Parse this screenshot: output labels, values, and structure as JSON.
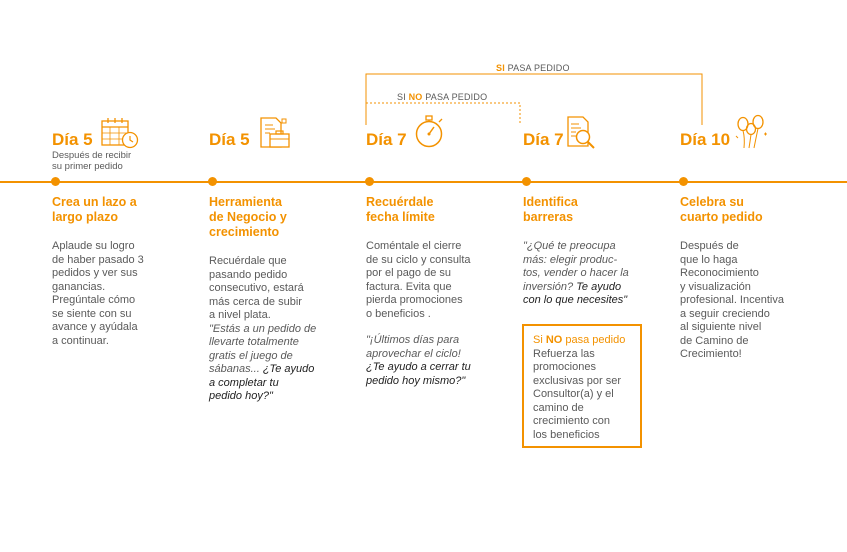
{
  "brackets": {
    "si_pasa": {
      "keyword": "SI",
      "rest": " PASA PEDIDO"
    },
    "no_pasa": {
      "prefix": "SI ",
      "keyword": "NO",
      "rest": " PASA PEDIDO"
    }
  },
  "steps": [
    {
      "day": "Día 5",
      "icon": "calendar-clock-icon",
      "subtitle": [
        "Después de recibir",
        "su primer pedido"
      ],
      "title": [
        "Crea un lazo a",
        "largo plazo"
      ],
      "body": [
        "Aplaude su logro",
        "de haber pasado 3",
        "pedidos y ver sus",
        "ganancias.",
        "Pregúntale cómo",
        "se siente con su",
        "avance y ayúdala",
        "a continuar."
      ]
    },
    {
      "day": "Día 5",
      "icon": "business-tools-icon",
      "title": [
        "Herramienta",
        "de Negocio y",
        "crecimiento"
      ],
      "body": [
        "Recuérdale que",
        "pasando pedido",
        "consecutivo, estará",
        "más cerca de subir",
        "a nivel plata."
      ],
      "quote": [
        "\"Estás a un pedido de",
        "llevarte totalmente",
        "gratis el juego de"
      ],
      "quote_last": "sábanas... ",
      "quote_bold": [
        "¿Te ayudo",
        "a completar tu",
        "pedido hoy?\""
      ]
    },
    {
      "day": "Día 7",
      "icon": "stopwatch-icon",
      "title": [
        "Recuérdale",
        "fecha límite"
      ],
      "body": [
        "Coméntale el cierre",
        "de su ciclo y consulta",
        "por el pago de su",
        "factura. Evita que",
        "pierda promociones",
        "o beneficios ."
      ],
      "quote": [
        "\"¡Últimos días para",
        "aprovechar el ciclo!"
      ],
      "quote_bold": [
        "¿Te ayudo a cerrar tu",
        "pedido hoy mismo?\""
      ]
    },
    {
      "day": "Día 7",
      "icon": "document-search-icon",
      "title": [
        "Identifica",
        "barreras"
      ],
      "quote": [
        "\"¿Qué te preocupa",
        "más: elegir produc-",
        "tos, vender o hacer la"
      ],
      "quote_mid": "inversión? ",
      "quote_bold_inline": "Te ayudo",
      "quote_bold": [
        "con lo que necesites\""
      ],
      "box": {
        "head_prefix": "Si ",
        "head_keyword": "NO",
        "head_rest": " pasa pedido",
        "lines": [
          "Refuerza las",
          "promociones",
          "exclusivas por ser",
          "Consultor(a) y el",
          "camino de",
          "crecimiento con",
          "los beneficios"
        ]
      }
    },
    {
      "day": "Día 10",
      "icon": "balloons-icon",
      "title": [
        "Celebra su",
        "cuarto pedido"
      ],
      "body": [
        "Después de",
        "que lo haga",
        "Reconocimiento",
        "y visualización",
        "profesional. Incentiva",
        "a seguir creciendo",
        "al siguiente nivel",
        "de Camino de",
        "Crecimiento!"
      ]
    }
  ],
  "colors": {
    "accent": "#f39200",
    "text": "#5a5a5a",
    "emphasis": "#222222"
  }
}
